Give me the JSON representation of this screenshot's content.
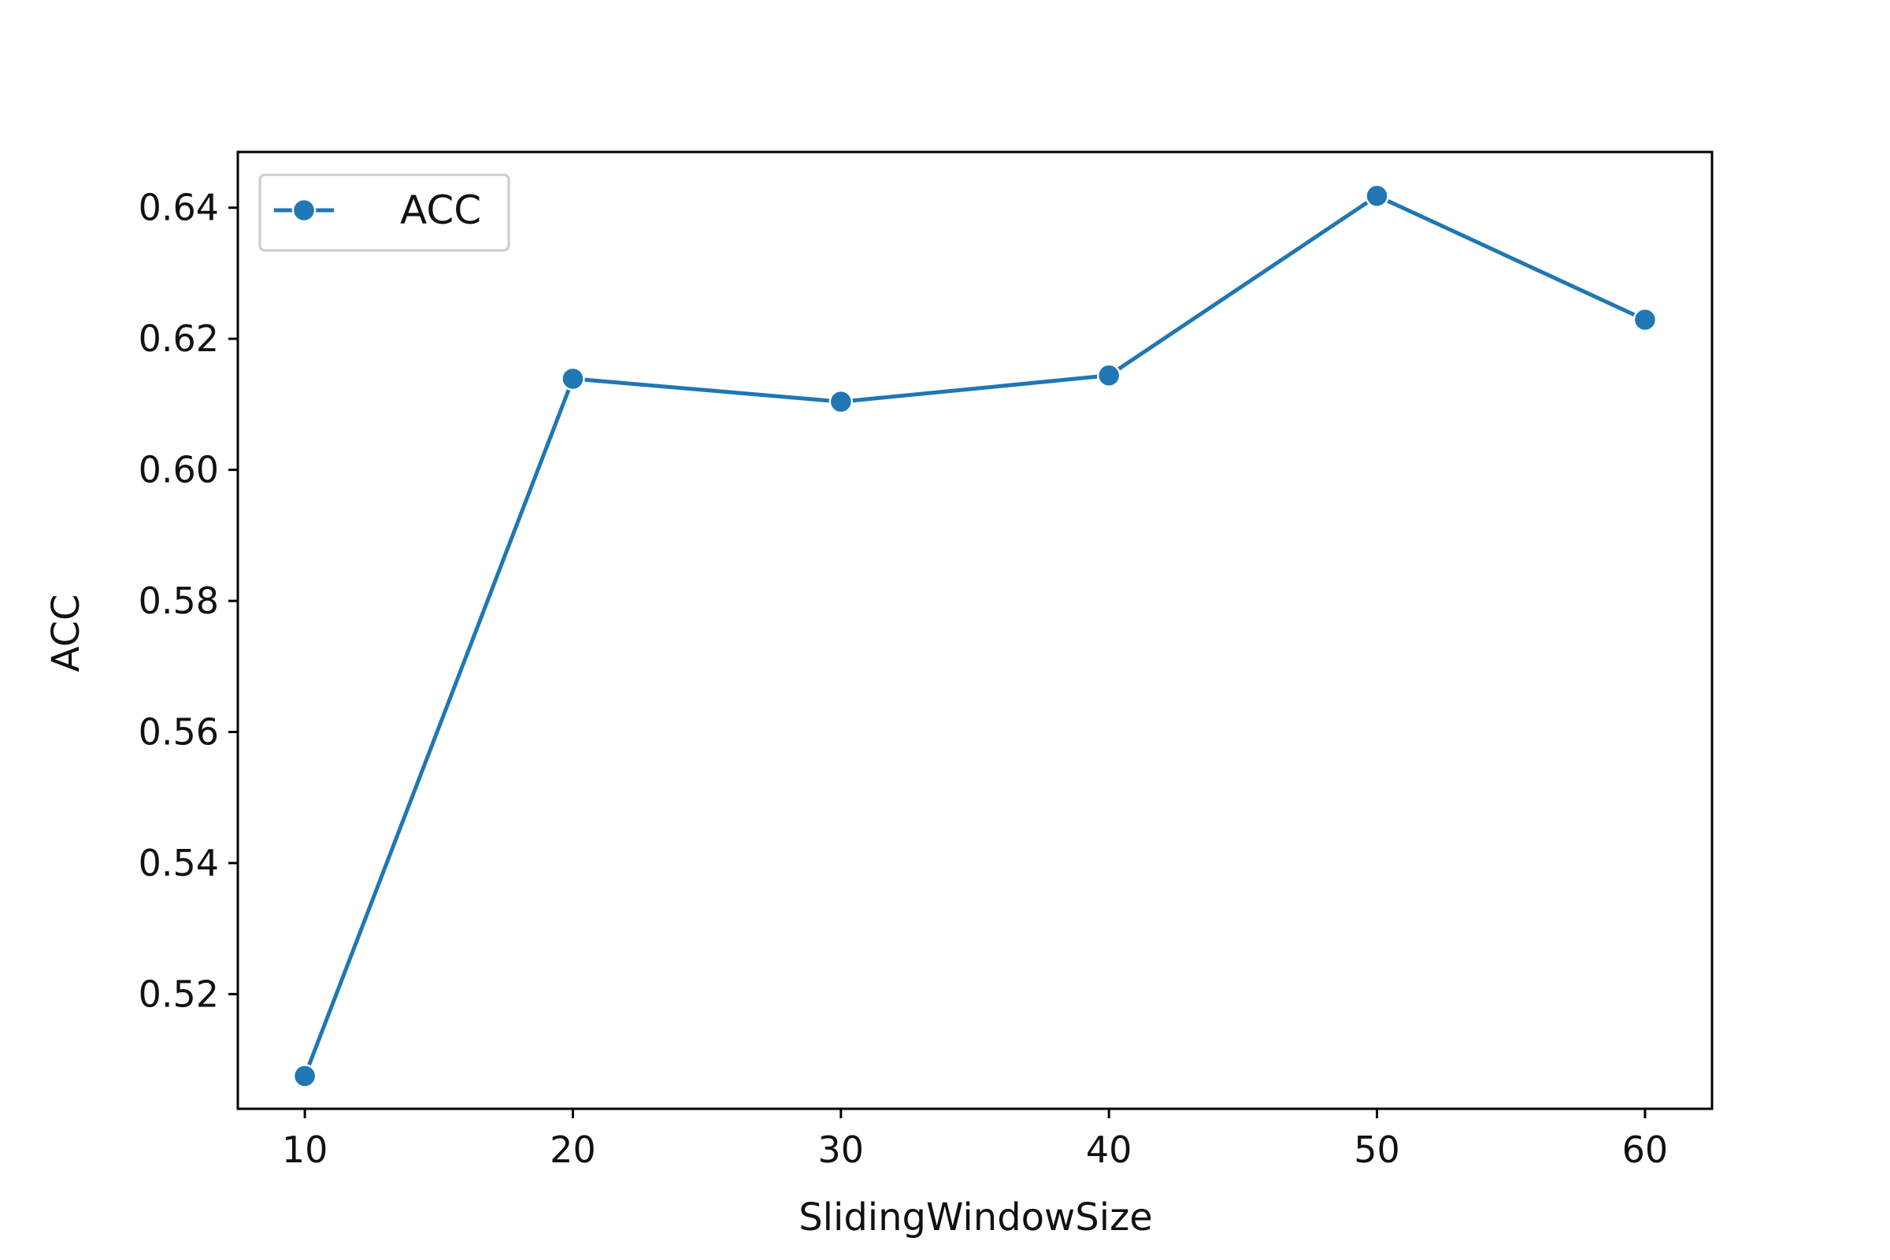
{
  "chart_data": {
    "type": "line",
    "xlabel": "SlidingWindowSize",
    "ylabel": "ACC",
    "xlim": [
      7.5,
      62.5
    ],
    "ylim": [
      0.5025,
      0.6485
    ],
    "x_ticks": [
      10,
      20,
      30,
      40,
      50,
      60
    ],
    "x_tick_labels": [
      "10",
      "20",
      "30",
      "40",
      "50",
      "60"
    ],
    "y_ticks": [
      0.52,
      0.54,
      0.56,
      0.58,
      0.6,
      0.62,
      0.64
    ],
    "y_tick_labels": [
      "0.52",
      "0.54",
      "0.56",
      "0.58",
      "0.60",
      "0.62",
      "0.64"
    ],
    "grid": false,
    "legend_position": "top-left",
    "series": [
      {
        "name": "ACC",
        "color": "#1f77b4",
        "marker": "circle",
        "x": [
          10,
          20,
          30,
          40,
          50,
          60
        ],
        "y": [
          0.5075,
          0.6139,
          0.6104,
          0.6144,
          0.6418,
          0.6229
        ]
      }
    ]
  }
}
